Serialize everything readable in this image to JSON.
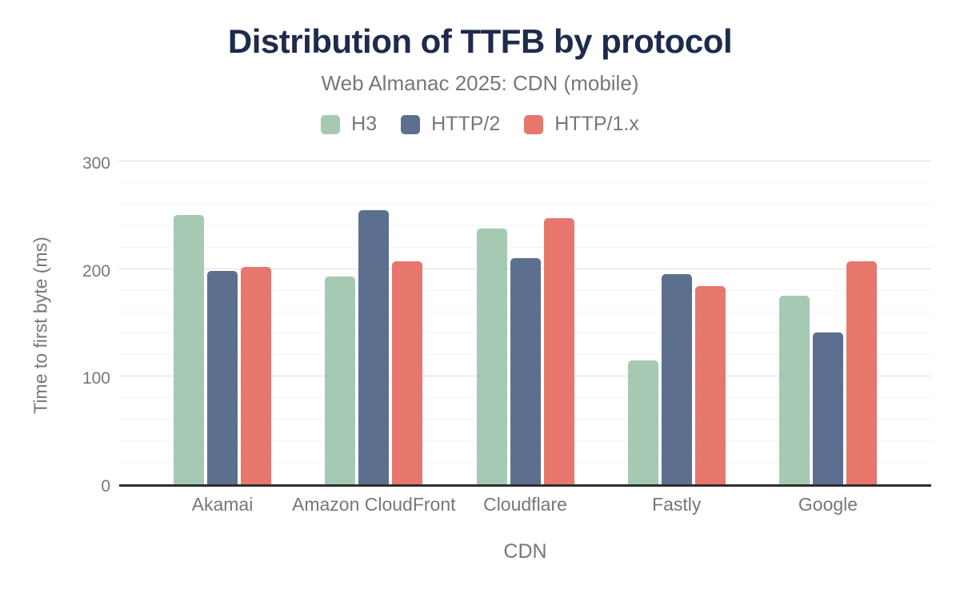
{
  "header": {
    "title": "Distribution of TTFB by protocol",
    "subtitle": "Web Almanac 2025: CDN (mobile)"
  },
  "chart_data": {
    "type": "bar",
    "title": "Distribution of TTFB by protocol",
    "subtitle": "Web Almanac 2025: CDN (mobile)",
    "xlabel": "CDN",
    "ylabel": "Time to first byte (ms)",
    "ylim": [
      0,
      300
    ],
    "yticks": [
      0,
      100,
      200,
      300
    ],
    "ygrid_minor_step": 20,
    "ygrid_major_step": 100,
    "grid": "horizontal",
    "legend_position": "top",
    "categories": [
      "Akamai",
      "Amazon CloudFront",
      "Cloudflare",
      "Fastly",
      "Google"
    ],
    "series": [
      {
        "name": "H3",
        "color": "#a5c9b3",
        "values": [
          250,
          193,
          238,
          115,
          175
        ]
      },
      {
        "name": "HTTP/2",
        "color": "#5d6f8e",
        "values": [
          198,
          255,
          210,
          195,
          141
        ]
      },
      {
        "name": "HTTP/1.x",
        "color": "#e7766d",
        "values": [
          202,
          207,
          247,
          184,
          207
        ]
      }
    ]
  },
  "colors": {
    "background": "#ffffff",
    "title": "#1e2b4d",
    "text": "#777777",
    "axis_line": "#2e2e2e",
    "grid_major": "#dedede",
    "grid_minor": "#f4f4f4"
  }
}
